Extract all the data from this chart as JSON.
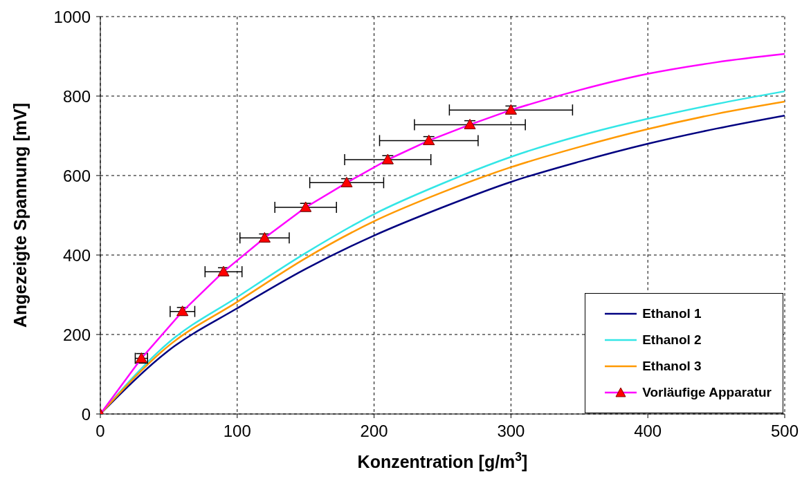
{
  "chart_data": {
    "type": "line",
    "xlabel": "Konzentration [g/m$^{3}$]",
    "ylabel": "Angezeigte Spannung [mV]",
    "xlim": [
      0,
      500
    ],
    "xticks": [
      0,
      100,
      200,
      300,
      400,
      500
    ],
    "ylim": [
      0,
      1000
    ],
    "yticks": [
      0,
      200,
      400,
      600,
      800,
      1000
    ],
    "grid": true,
    "legend": "bottom right",
    "series": [
      {
        "name": "Ethanol 1",
        "color": "#000080",
        "marker": "none",
        "line_style": "solid",
        "x": [
          0,
          50,
          100,
          150,
          200,
          250,
          300,
          350,
          400,
          450,
          500
        ],
        "values": [
          0,
          160,
          266,
          365,
          449,
          520,
          584,
          635,
          680,
          718,
          751
        ]
      },
      {
        "name": "Ethanol 2",
        "color": "#33e6e6",
        "marker": "none",
        "line_style": "solid",
        "x": [
          0,
          50,
          100,
          150,
          200,
          250,
          300,
          350,
          400,
          450,
          500
        ],
        "values": [
          0,
          180,
          294,
          405,
          503,
          580,
          647,
          700,
          743,
          780,
          812
        ]
      },
      {
        "name": "Ethanol 3",
        "color": "#ff9900",
        "marker": "none",
        "line_style": "solid",
        "x": [
          0,
          50,
          100,
          150,
          200,
          250,
          300,
          350,
          400,
          450,
          500
        ],
        "values": [
          0,
          172,
          282,
          392,
          485,
          558,
          621,
          672,
          717,
          755,
          786
        ]
      },
      {
        "name": "Vorläufige Apparatur",
        "color": "#ff00ff",
        "marker": "triangle",
        "line_style": "solid",
        "x": [
          0,
          30,
          60,
          90,
          120,
          150,
          180,
          210,
          240,
          270,
          300
        ],
        "values": [
          0,
          140,
          258,
          358,
          443,
          520,
          582,
          640,
          688,
          728,
          765
        ],
        "errors": [
          null,
          12,
          10,
          10,
          10,
          10,
          10,
          10,
          10,
          10,
          10
        ],
        "xerrors": [
          null,
          4.5,
          9,
          13.5,
          18,
          22.5,
          27,
          31.5,
          36,
          40.5,
          45
        ]
      },
      {
        "type": "line",
        "color": "#ff00ff",
        "marker": "none",
        "line_style": "solid",
        "x": [
          300,
          350,
          400,
          450,
          500
        ],
        "values": [
          765,
          815,
          856,
          885,
          906
        ]
      }
    ]
  }
}
